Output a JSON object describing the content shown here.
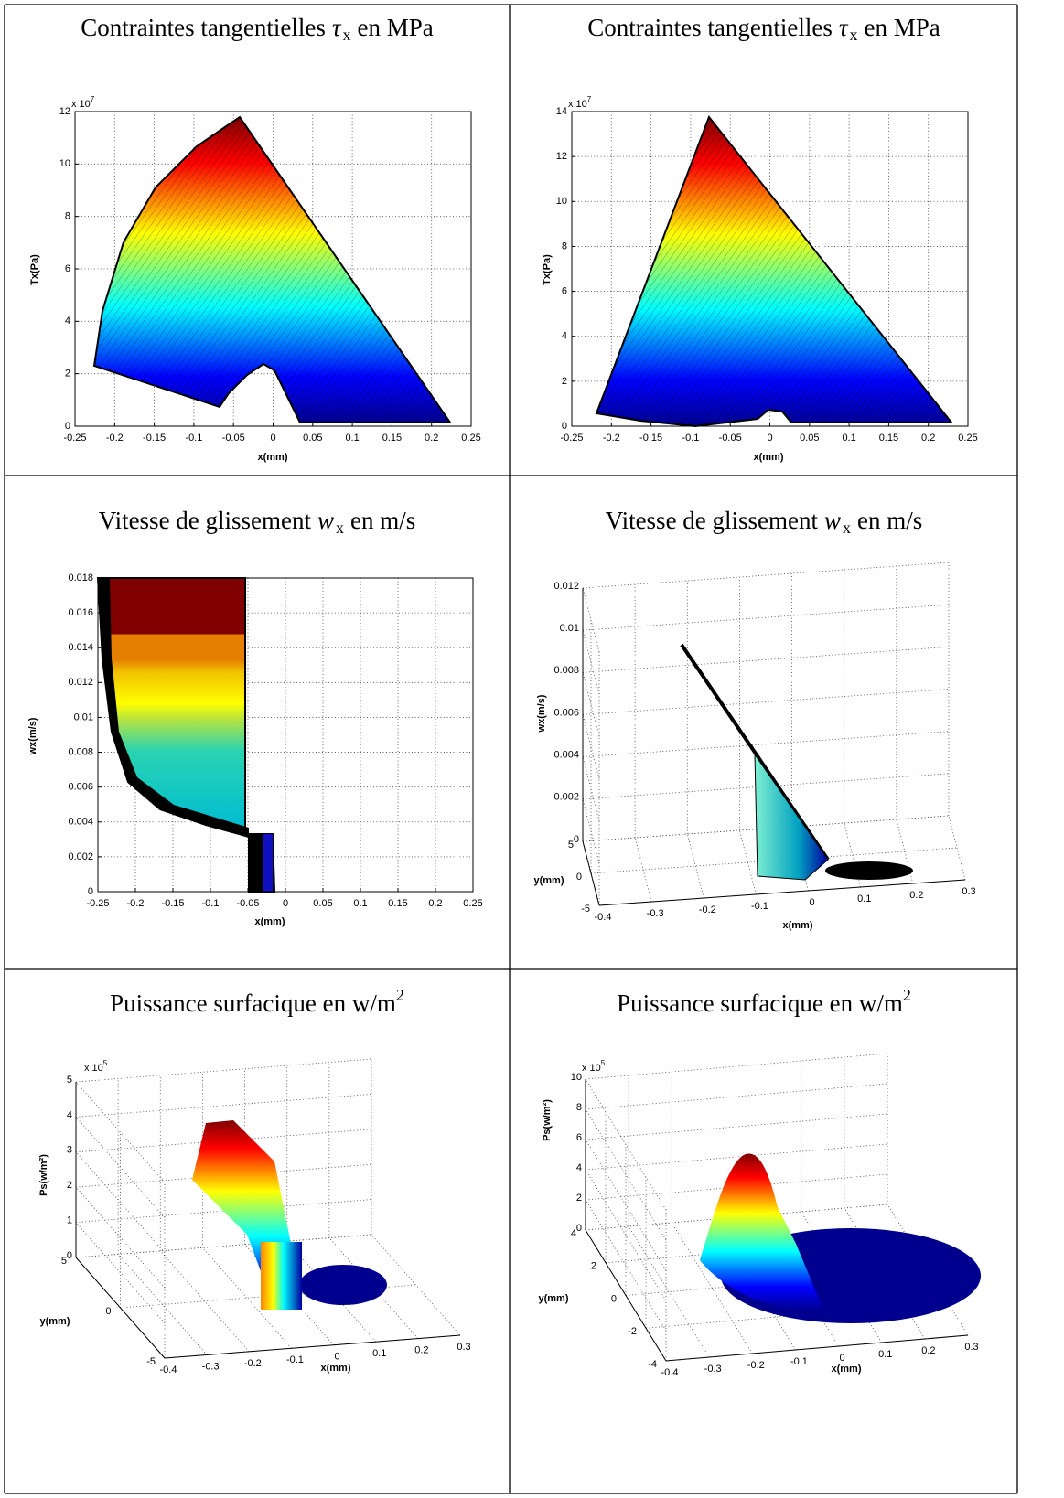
{
  "chart_data": [
    {
      "type": "surface",
      "view": "2d",
      "title": [
        {
          "text": "Contraintes tangentielles"
        },
        {
          "text": "τ",
          "style": "italic"
        },
        {
          "text": "x",
          "style": "sub"
        },
        {
          "text": "en MPa"
        }
      ],
      "xlabel": "x(mm)",
      "ylabel": "Tx(Pa)",
      "exponent": {
        "base": "x 10",
        "power": "7"
      },
      "xlim": [
        -0.25,
        0.25
      ],
      "xticks": [
        -0.25,
        -0.2,
        -0.15,
        -0.1,
        -0.05,
        0,
        0.05,
        0.1,
        0.15,
        0.2,
        0.25
      ],
      "ylim": [
        0,
        12
      ],
      "yticks": [
        0,
        2,
        4,
        6,
        8,
        10,
        12
      ],
      "grid": true
    },
    {
      "type": "surface",
      "view": "2d",
      "title": [
        {
          "text": "Contraintes tangentielles"
        },
        {
          "text": "τ",
          "style": "italic"
        },
        {
          "text": "x",
          "style": "sub"
        },
        {
          "text": "en MPa"
        }
      ],
      "xlabel": "x(mm)",
      "ylabel": "Tx(Pa)",
      "exponent": {
        "base": "x 10",
        "power": "7"
      },
      "xlim": [
        -0.25,
        0.25
      ],
      "xticks": [
        -0.25,
        -0.2,
        -0.15,
        -0.1,
        -0.05,
        0,
        0.05,
        0.1,
        0.15,
        0.2,
        0.25
      ],
      "ylim": [
        0,
        14
      ],
      "yticks": [
        0,
        2,
        4,
        6,
        8,
        10,
        12,
        14
      ],
      "grid": true
    },
    {
      "type": "surface",
      "view": "2d",
      "title": [
        {
          "text": "Vitesse de glissement"
        },
        {
          "text": "w",
          "style": "italic"
        },
        {
          "text": "x",
          "style": "sub"
        },
        {
          "text": "en m/s"
        }
      ],
      "xlabel": "x(mm)",
      "ylabel": "wx(m/s)",
      "xlim": [
        -0.25,
        0.25
      ],
      "xticks": [
        -0.25,
        -0.2,
        -0.15,
        -0.1,
        -0.05,
        0,
        0.05,
        0.1,
        0.15,
        0.2,
        0.25
      ],
      "ylim": [
        0,
        0.018
      ],
      "yticks": [
        0,
        0.002,
        0.004,
        0.006,
        0.008,
        0.01,
        0.012,
        0.014,
        0.016,
        0.018
      ],
      "grid": true
    },
    {
      "type": "surface",
      "view": "3d",
      "title": [
        {
          "text": "Vitesse de glissement"
        },
        {
          "text": "w",
          "style": "italic"
        },
        {
          "text": "x",
          "style": "sub"
        },
        {
          "text": "en m/s"
        }
      ],
      "xlabel": "x(mm)",
      "ylabel": "y(mm)",
      "zlabel": "wx(m/s)",
      "xlim": [
        -0.4,
        0.3
      ],
      "xticks": [
        -0.4,
        -0.3,
        -0.2,
        -0.1,
        0,
        0.1,
        0.2,
        0.3
      ],
      "ylim": [
        -5,
        5
      ],
      "yticks": [
        -5,
        0,
        5
      ],
      "zlim": [
        0,
        0.012
      ],
      "zticks": [
        0,
        0.002,
        0.004,
        0.006,
        0.008,
        0.01,
        0.012
      ],
      "grid": true
    },
    {
      "type": "surface",
      "view": "3d",
      "title": [
        {
          "text": "Puissance surfacique en w/m"
        },
        {
          "text": "2",
          "style": "sup"
        }
      ],
      "xlabel": "x(mm)",
      "ylabel": "y(mm)",
      "zlabel": "Ps(w/m²)",
      "exponent": {
        "base": "x 10",
        "power": "5"
      },
      "xlim": [
        -0.4,
        0.3
      ],
      "xticks": [
        -0.4,
        -0.3,
        -0.2,
        -0.1,
        0,
        0.1,
        0.2,
        0.3
      ],
      "ylim": [
        -5,
        5
      ],
      "yticks": [
        -5,
        0,
        5
      ],
      "zlim": [
        0,
        5
      ],
      "zticks": [
        0,
        1,
        2,
        3,
        4,
        5
      ],
      "grid": true
    },
    {
      "type": "surface",
      "view": "3d",
      "title": [
        {
          "text": "Puissance surfacique en w/m"
        },
        {
          "text": "2",
          "style": "sup"
        }
      ],
      "xlabel": "x(mm)",
      "ylabel": "y(mm)",
      "zlabel": "Ps(w/m²)",
      "exponent": {
        "base": "x 10",
        "power": "5"
      },
      "xlim": [
        -0.4,
        0.3
      ],
      "xticks": [
        -0.4,
        -0.3,
        -0.2,
        -0.1,
        0,
        0.1,
        0.2,
        0.3
      ],
      "ylim": [
        -4,
        4
      ],
      "yticks": [
        -4,
        -2,
        0,
        2,
        4
      ],
      "zlim": [
        0,
        10
      ],
      "zticks": [
        0,
        2,
        4,
        6,
        8,
        10
      ],
      "grid": true
    }
  ]
}
